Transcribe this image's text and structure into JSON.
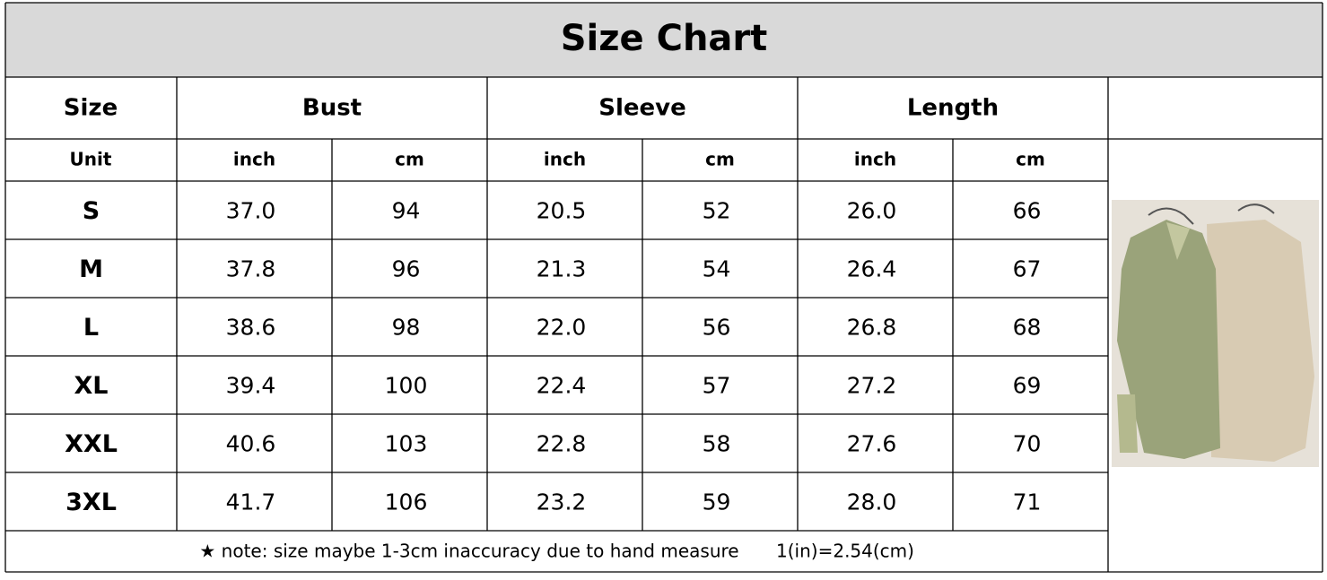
{
  "title": "Size Chart",
  "header": {
    "size": "Size",
    "groups": [
      "Bust",
      "Sleeve",
      "Length"
    ]
  },
  "units": {
    "label": "Unit",
    "items": [
      "inch",
      "cm",
      "inch",
      "cm",
      "inch",
      "cm"
    ]
  },
  "table": {
    "rows": [
      [
        "S",
        "37.0",
        "94",
        "20.5",
        "52",
        "26.0",
        "66"
      ],
      [
        "M",
        "37.8",
        "96",
        "21.3",
        "54",
        "26.4",
        "67"
      ],
      [
        "L",
        "38.6",
        "98",
        "22.0",
        "56",
        "26.8",
        "68"
      ],
      [
        "XL",
        "39.4",
        "100",
        "22.4",
        "57",
        "27.2",
        "69"
      ],
      [
        "XXL",
        "40.6",
        "103",
        "22.8",
        "58",
        "27.6",
        "70"
      ],
      [
        "3XL",
        "41.7",
        "106",
        "23.2",
        "59",
        "28.0",
        "71"
      ]
    ]
  },
  "note": {
    "text": "★ note: size maybe 1-3cm inaccuracy due to hand measure",
    "conversion": "1(in)=2.54(cm)"
  }
}
